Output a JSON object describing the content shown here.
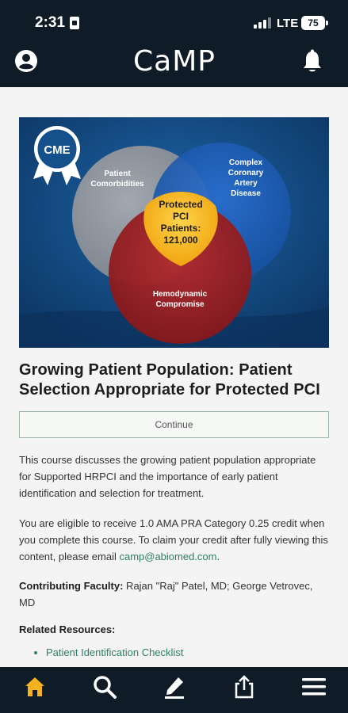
{
  "status_bar": {
    "time": "2:31",
    "network": "LTE",
    "battery": "75"
  },
  "header": {
    "brand": "CaMP",
    "profile_icon": "account-circle-icon",
    "notification_icon": "bell-icon"
  },
  "hero": {
    "badge": "CME",
    "circles": {
      "left": "Patient Comorbidities",
      "right": [
        "Complex",
        "Coronary",
        "Artery",
        "Disease"
      ],
      "bottom": [
        "Hemodynamic",
        "Compromise"
      ],
      "center": [
        "Protected",
        "PCI",
        "Patients:",
        "121,000"
      ]
    },
    "colors": {
      "background": "#14508a",
      "left_circle": "#8a8f96",
      "right_circle": "#1f5fb4",
      "bottom_circle": "#9b1e22",
      "center": "#f4b31e"
    }
  },
  "course": {
    "title": "Growing Patient Population: Patient Selection Appropriate for Protected PCI",
    "continue_label": "Continue",
    "description": "This course discusses the growing patient population appropriate for Supported HRPCI and the importance of early patient identification and selection for treatment.",
    "credit_text": "You are eligible to receive 1.0 AMA PRA Category 0.25 credit when you complete this course. To claim your credit after fully viewing this content, please email ",
    "credit_email": "camp@abiomed.com",
    "credit_end": ".",
    "faculty_label": "Contributing Faculty:",
    "faculty_names": " Rajan \"Raj\" Patel, MD; George Vetrovec, MD",
    "related_title": "Related Resources:",
    "related_items": [
      "Patient Identification Checklist"
    ]
  },
  "tab_bar": {
    "items": [
      {
        "name": "home",
        "icon": "home-icon",
        "active": true
      },
      {
        "name": "search",
        "icon": "search-icon",
        "active": false
      },
      {
        "name": "edit",
        "icon": "pencil-icon",
        "active": false
      },
      {
        "name": "share",
        "icon": "share-icon",
        "active": false
      },
      {
        "name": "menu",
        "icon": "menu-icon",
        "active": false
      }
    ],
    "active_color": "#f4b31e"
  }
}
